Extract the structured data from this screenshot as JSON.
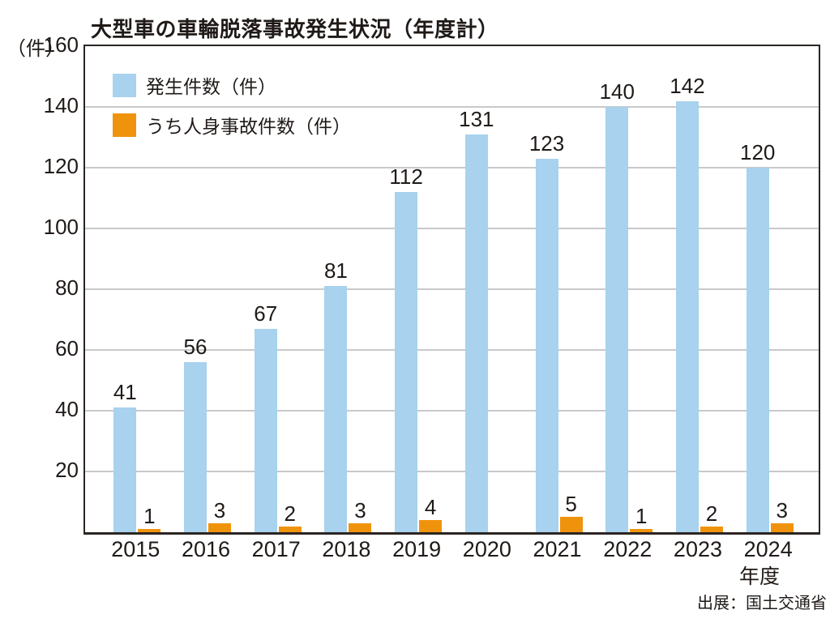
{
  "title": "大型車の車輪脱落事故発生状況（年度計）",
  "y_axis_unit": "（件）",
  "x_axis_unit": "年度",
  "source": "出展：国土交通省",
  "colors": {
    "occurrences_bar": "#a8d2ee",
    "injury_bar": "#f0930c",
    "gridline": "#c9c9c9",
    "axis": "#2b2523",
    "text": "#1f1a17"
  },
  "legend": [
    {
      "label": "発生件数（件）",
      "color": "#a8d2ee"
    },
    {
      "label": "うち人身事故件数（件）",
      "color": "#f0930c"
    }
  ],
  "chart_data": {
    "type": "bar",
    "title": "大型車の車輪脱落事故発生状況（年度計）",
    "categories": [
      "2015",
      "2016",
      "2017",
      "2018",
      "2019",
      "2020",
      "2021",
      "2022",
      "2023",
      "2024"
    ],
    "series": [
      {
        "name": "発生件数（件）",
        "color": "#a8d2ee",
        "values": [
          41,
          56,
          67,
          81,
          112,
          131,
          123,
          140,
          142,
          120
        ]
      },
      {
        "name": "うち人身事故件数（件）",
        "color": "#f0930c",
        "values": [
          1,
          3,
          2,
          3,
          4,
          null,
          5,
          1,
          2,
          3
        ]
      }
    ],
    "xlabel": "年度",
    "ylabel": "（件）",
    "ylim": [
      0,
      160
    ],
    "yticks": [
      20,
      40,
      60,
      80,
      100,
      120,
      140,
      160
    ],
    "grid": true,
    "legend_position": "top-left-inside",
    "value_labels": true
  }
}
